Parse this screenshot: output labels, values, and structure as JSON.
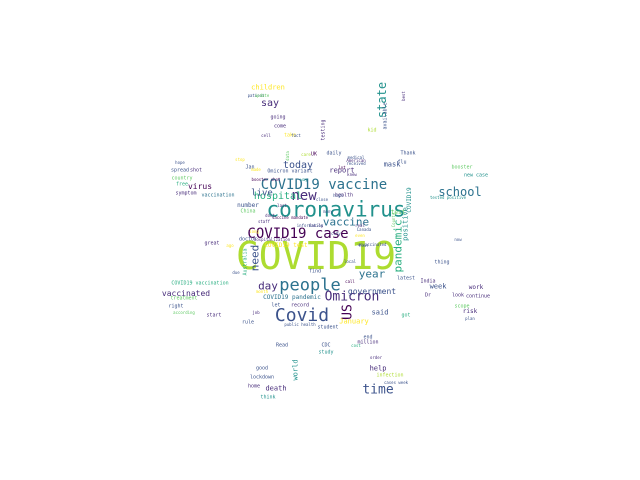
{
  "colors": {
    "background": "#ffffff",
    "palette": [
      "#440154",
      "#472c7a",
      "#3b528b",
      "#2c728e",
      "#21918c",
      "#28ae80",
      "#5ec962",
      "#addc30",
      "#fde725"
    ]
  },
  "words": [
    {
      "text": "COVID19",
      "color": "#addc30"
    },
    {
      "text": "coronavirus",
      "color": "#21918c"
    },
    {
      "text": "COVID19 vaccine",
      "color": "#2c728e"
    },
    {
      "text": "people",
      "color": "#2c728e"
    },
    {
      "text": "Covid",
      "color": "#3b528b"
    },
    {
      "text": "new",
      "color": "#472c7a"
    },
    {
      "text": "COVID19 case",
      "color": "#440154"
    },
    {
      "text": "Omicron",
      "color": "#472c7a"
    },
    {
      "text": "vaccine",
      "color": "#2c728e"
    },
    {
      "text": "time",
      "color": "#3b528b"
    },
    {
      "text": "school",
      "color": "#2c728e"
    },
    {
      "text": "state",
      "color": "#21918c"
    },
    {
      "text": "US",
      "color": "#440154"
    },
    {
      "text": "pandemic",
      "color": "#28ae80"
    },
    {
      "text": "need",
      "color": "#3b528b"
    },
    {
      "text": "year",
      "color": "#2c728e"
    },
    {
      "text": "day",
      "color": "#472c7a"
    },
    {
      "text": "today",
      "color": "#3b528b"
    },
    {
      "text": "hospital",
      "color": "#28ae80"
    },
    {
      "text": "say",
      "color": "#472c7a"
    },
    {
      "text": "live",
      "color": "#3b528b"
    },
    {
      "text": "government",
      "color": "#3b528b"
    },
    {
      "text": "vaccinated",
      "color": "#472c7a"
    },
    {
      "text": "virus",
      "color": "#440154"
    },
    {
      "text": "children",
      "color": "#fde725"
    },
    {
      "text": "positive",
      "color": "#21918c"
    },
    {
      "text": "COVID19",
      "color": "#21918c"
    },
    {
      "text": "report",
      "color": "#472c7a"
    },
    {
      "text": "test",
      "color": "#5ec962"
    },
    {
      "text": "mask",
      "color": "#3b528b"
    },
    {
      "text": "said",
      "color": "#3b528b"
    },
    {
      "text": "January",
      "color": "#fde725"
    },
    {
      "text": "week",
      "color": "#3b528b"
    },
    {
      "text": "work",
      "color": "#472c7a"
    },
    {
      "text": "death",
      "color": "#472c7a"
    },
    {
      "text": "help",
      "color": "#472c7a"
    },
    {
      "text": "world",
      "color": "#21918c"
    },
    {
      "text": "number",
      "color": "#3b528b"
    },
    {
      "text": "new case",
      "color": "#21918c"
    },
    {
      "text": "daily",
      "color": "#3b528b"
    },
    {
      "text": "health",
      "color": "#472c7a"
    },
    {
      "text": "Omicron variant",
      "color": "#3b528b"
    },
    {
      "text": "COVID19 pandemic",
      "color": "#2c728e"
    },
    {
      "text": "COVID19 vaccination",
      "color": "#28ae80"
    },
    {
      "text": "COVID19 test",
      "color": "#fde725"
    },
    {
      "text": "million",
      "color": "#472c7a"
    },
    {
      "text": "student",
      "color": "#3b528b"
    },
    {
      "text": "lockdown",
      "color": "#3b528b"
    },
    {
      "text": "risk",
      "color": "#472c7a"
    },
    {
      "text": "thing",
      "color": "#3b528b"
    },
    {
      "text": "country",
      "color": "#5ec962"
    },
    {
      "text": "free",
      "color": "#28ae80"
    },
    {
      "text": "shot",
      "color": "#472c7a"
    },
    {
      "text": "spread",
      "color": "#3b528b"
    },
    {
      "text": "symptom",
      "color": "#472c7a"
    },
    {
      "text": "vaccination",
      "color": "#2c728e"
    },
    {
      "text": "China",
      "color": "#5ec962"
    },
    {
      "text": "great",
      "color": "#472c7a"
    },
    {
      "text": "doctor",
      "color": "#3b528b"
    },
    {
      "text": "find",
      "color": "#3b528b"
    },
    {
      "text": "record",
      "color": "#472c7a"
    },
    {
      "text": "let",
      "color": "#3b528b"
    },
    {
      "text": "rule",
      "color": "#3b528b"
    },
    {
      "text": "right",
      "color": "#3b528b"
    },
    {
      "text": "good",
      "color": "#3b528b"
    },
    {
      "text": "home",
      "color": "#472c7a"
    },
    {
      "text": "think",
      "color": "#21918c"
    },
    {
      "text": "Read",
      "color": "#3b528b"
    },
    {
      "text": "CDC",
      "color": "#3b528b"
    },
    {
      "text": "study",
      "color": "#21918c"
    },
    {
      "text": "India",
      "color": "#472c7a"
    },
    {
      "text": "latest",
      "color": "#3b528b"
    },
    {
      "text": "Thank",
      "color": "#3b528b"
    },
    {
      "text": "flu",
      "color": "#3b528b"
    },
    {
      "text": "going",
      "color": "#472c7a"
    },
    {
      "text": "come",
      "color": "#472c7a"
    },
    {
      "text": "testing",
      "color": "#472c7a"
    },
    {
      "text": "available",
      "color": "#3b528b"
    },
    {
      "text": "kid",
      "color": "#addc30"
    },
    {
      "text": "Jan",
      "color": "#3b528b"
    },
    {
      "text": "UK",
      "color": "#440154"
    },
    {
      "text": "continue",
      "color": "#472c7a"
    },
    {
      "text": "booster",
      "color": "#5ec962"
    },
    {
      "text": "booster shot",
      "color": "#440154"
    },
    {
      "text": "Australia",
      "color": "#28ae80"
    },
    {
      "text": "treatment",
      "color": "#5ec962"
    },
    {
      "text": "start",
      "color": "#472c7a"
    },
    {
      "text": "according",
      "color": "#5ec962"
    },
    {
      "text": "public health",
      "color": "#3b528b"
    },
    {
      "text": "unvaccinated",
      "color": "#3b528b"
    },
    {
      "text": "infection",
      "color": "#addc30"
    },
    {
      "text": "cases week",
      "color": "#3b528b"
    },
    {
      "text": "order",
      "color": "#472c7a"
    },
    {
      "text": "end",
      "color": "#3b528b"
    },
    {
      "text": "got",
      "color": "#28ae80"
    },
    {
      "text": "dont",
      "color": "#472c7a"
    },
    {
      "text": "take",
      "color": "#fde725"
    },
    {
      "text": "patient",
      "color": "#3b528b"
    },
    {
      "text": "update",
      "color": "#5ec962"
    },
    {
      "text": "hope",
      "color": "#3b528b"
    },
    {
      "text": "best",
      "color": "#472c7a"
    },
    {
      "text": "fact",
      "color": "#3b528b"
    },
    {
      "text": "Dr",
      "color": "#472c7a"
    },
    {
      "text": "now",
      "color": "#3b528b"
    },
    {
      "text": "plan",
      "color": "#3b528b"
    },
    {
      "text": "look",
      "color": "#472c7a"
    },
    {
      "text": "scope",
      "color": "#5ec962"
    },
    {
      "text": "stop",
      "color": "#fde725"
    },
    {
      "text": "care",
      "color": "#addc30"
    },
    {
      "text": "made",
      "color": "#fde725"
    },
    {
      "text": "data",
      "color": "#5ec962"
    },
    {
      "text": "long",
      "color": "#fde725"
    },
    {
      "text": "ago",
      "color": "#fde725"
    },
    {
      "text": "cost",
      "color": "#28ae80"
    },
    {
      "text": "received",
      "color": "#3b528b"
    },
    {
      "text": "American",
      "color": "#472c7a"
    },
    {
      "text": "due",
      "color": "#3b528b"
    },
    {
      "text": "way",
      "color": "#21918c"
    },
    {
      "text": "Canada",
      "color": "#3b528b"
    },
    {
      "text": "job",
      "color": "#472c7a"
    },
    {
      "text": "family",
      "color": "#472c7a"
    },
    {
      "text": "close",
      "color": "#3b528b"
    },
    {
      "text": "last",
      "color": "#472c7a"
    },
    {
      "text": "city",
      "color": "#3b528b"
    },
    {
      "text": "hour",
      "color": "#3b528b"
    },
    {
      "text": "knew",
      "color": "#472c7a"
    },
    {
      "text": "cell",
      "color": "#472c7a"
    },
    {
      "text": "call",
      "color": "#440154"
    },
    {
      "text": "lot",
      "color": "#440154"
    },
    {
      "text": "high",
      "color": "#3b528b"
    },
    {
      "text": "many",
      "color": "#3b528b"
    },
    {
      "text": "real",
      "color": "#472c7a"
    },
    {
      "text": "medical",
      "color": "#3b528b"
    },
    {
      "text": "tested positive",
      "color": "#21918c"
    },
    {
      "text": "month",
      "color": "#fde725"
    },
    {
      "text": "information",
      "color": "#3b528b"
    },
    {
      "text": "hospitalization",
      "color": "#472c7a"
    },
    {
      "text": "County",
      "color": "#5ec962"
    },
    {
      "text": "vaccine mandate",
      "color": "#440154"
    },
    {
      "text": "even",
      "color": "#fde725"
    },
    {
      "text": "staff",
      "color": "#472c7a"
    },
    {
      "text": "local",
      "color": "#3b528b"
    }
  ]
}
